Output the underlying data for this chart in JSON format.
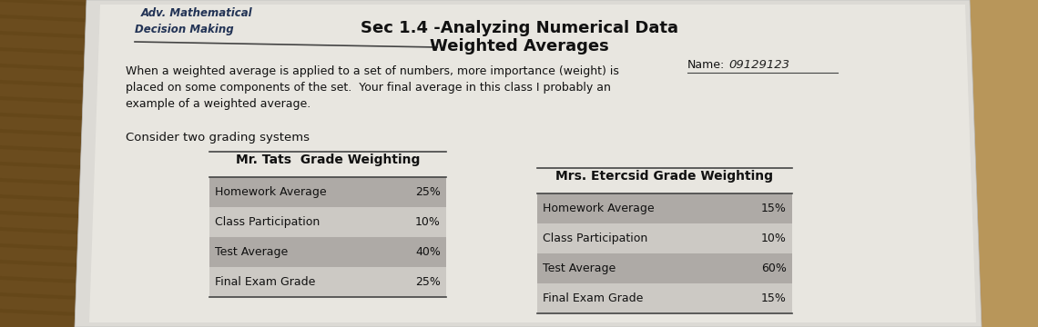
{
  "title_center": "Sec 1.4 -Analyzing Numerical Data",
  "subtitle_center": "Weighted Averages",
  "top_left_line1": "Adv. Mathematical",
  "top_left_line2": "Decision Making",
  "name_label": "Name:",
  "name_value": "09129123",
  "body_text_line1": "When a weighted average is applied to a set of numbers, more importance (weight) is",
  "body_text_line2": "placed on some components of the set.  Your final average in this class I probably an",
  "body_text_line3": "example of a weighted average.",
  "consider_text": "Consider two grading systems",
  "table1_title": "Mr. Tats  Grade Weighting",
  "table1_rows": [
    [
      "Homework Average",
      "25%"
    ],
    [
      "Class Participation",
      "10%"
    ],
    [
      "Test Average",
      "40%"
    ],
    [
      "Final Exam Grade",
      "25%"
    ]
  ],
  "table1_shaded_rows": [
    0,
    2
  ],
  "table2_title": "Mrs. Etercsid Grade Weighting",
  "table2_rows": [
    [
      "Homework Average",
      "15%"
    ],
    [
      "Class Participation",
      "10%"
    ],
    [
      "Test Average",
      "60%"
    ],
    [
      "Final Exam Grade",
      "15%"
    ]
  ],
  "table2_shaded_rows": [
    0,
    2
  ],
  "wood_color_left": "#8B6914",
  "wood_color_right": "#c8a060",
  "bg_color": "#b8945a",
  "paper_color": "#dcdad5",
  "paper_color2": "#e8e6e0",
  "shaded_row_color": "#aeaaa6",
  "unshaded_row_color": "#ccc9c4",
  "line_color": "#444444",
  "text_color": "#111111",
  "topleft_color": "#223355",
  "title_fontsize": 13,
  "body_fontsize": 9,
  "table_fontsize": 9,
  "consider_fontsize": 9.5,
  "table_header_fontsize": 10
}
